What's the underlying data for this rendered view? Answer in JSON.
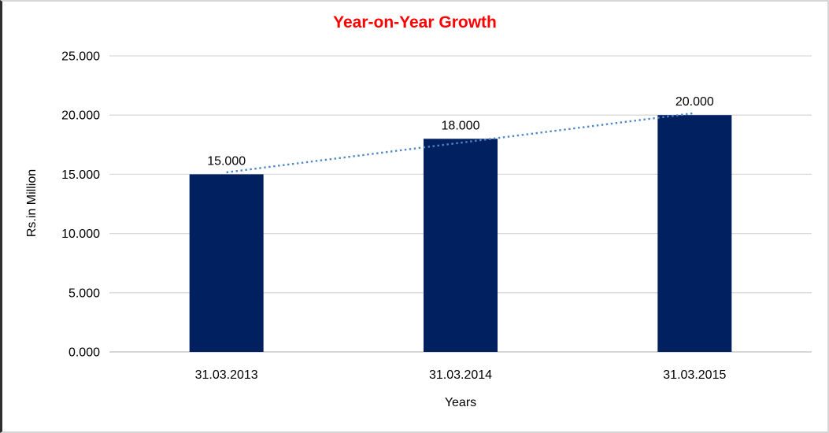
{
  "chart_data": {
    "type": "bar",
    "title": "Year-on-Year Growth",
    "title_color": "#ff0000",
    "categories": [
      "31.03.2013",
      "31.03.2014",
      "31.03.2015"
    ],
    "values": [
      15000,
      18000,
      20000
    ],
    "value_labels": [
      "15.000",
      "18.000",
      "20.000"
    ],
    "xlabel": "Years",
    "ylabel": "Rs.in Million",
    "ylim": [
      0,
      25000
    ],
    "ytick_step": 5000,
    "ytick_labels": [
      "0.000",
      "5.000",
      "10.000",
      "15.000",
      "20.000",
      "25.000"
    ],
    "bar_color": "#002060",
    "gridlines": true,
    "gridline_color": "#d9d9d9",
    "axis_line_color": "#bfbfbf",
    "text_color": "#000000",
    "legend": "none",
    "trendline": {
      "type": "linear",
      "style": "dotted",
      "color": "#4e87c6"
    }
  }
}
